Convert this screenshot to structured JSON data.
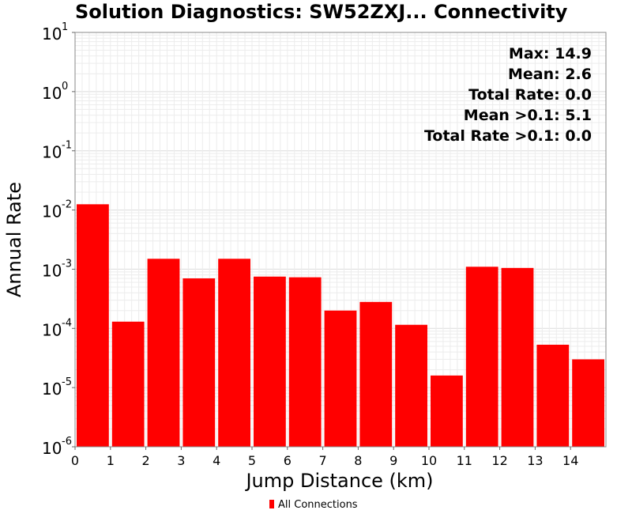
{
  "chart_data": {
    "type": "bar",
    "title": "Solution Diagnostics: SW52ZXJ... Connectivity",
    "xlabel": "Jump Distance (km)",
    "ylabel": "Annual Rate",
    "x_scale": "linear",
    "y_scale": "log",
    "xlim": [
      0,
      15
    ],
    "ylim": [
      1e-06,
      10
    ],
    "x_ticks": [
      "0",
      "1",
      "2",
      "3",
      "4",
      "5",
      "6",
      "7",
      "8",
      "9",
      "10",
      "11",
      "12",
      "13",
      "14"
    ],
    "y_ticks": [
      {
        "base": "10",
        "exp": "-6",
        "value": 1e-06
      },
      {
        "base": "10",
        "exp": "-5",
        "value": 1e-05
      },
      {
        "base": "10",
        "exp": "-4",
        "value": 0.0001
      },
      {
        "base": "10",
        "exp": "-3",
        "value": 0.001
      },
      {
        "base": "10",
        "exp": "-2",
        "value": 0.01
      },
      {
        "base": "10",
        "exp": "-1",
        "value": 0.1
      },
      {
        "base": "10",
        "exp": "0",
        "value": 1
      },
      {
        "base": "10",
        "exp": "1",
        "value": 10
      }
    ],
    "bar_color": "#ff0000",
    "grid": true,
    "bins": [
      {
        "x0": 0,
        "x1": 1,
        "value": 0.0125
      },
      {
        "x0": 1,
        "x1": 2,
        "value": 0.00013
      },
      {
        "x0": 2,
        "x1": 3,
        "value": 0.0015
      },
      {
        "x0": 3,
        "x1": 4,
        "value": 0.0007
      },
      {
        "x0": 4,
        "x1": 5,
        "value": 0.0015
      },
      {
        "x0": 5,
        "x1": 6,
        "value": 0.00075
      },
      {
        "x0": 6,
        "x1": 7,
        "value": 0.00073
      },
      {
        "x0": 7,
        "x1": 8,
        "value": 0.0002
      },
      {
        "x0": 8,
        "x1": 9,
        "value": 0.00028
      },
      {
        "x0": 9,
        "x1": 10,
        "value": 0.000115
      },
      {
        "x0": 10,
        "x1": 11,
        "value": 1.6e-05
      },
      {
        "x0": 11,
        "x1": 12,
        "value": 0.0011
      },
      {
        "x0": 12,
        "x1": 13,
        "value": 0.00105
      },
      {
        "x0": 13,
        "x1": 14,
        "value": 5.3e-05
      },
      {
        "x0": 14,
        "x1": 15,
        "value": 3e-05
      }
    ],
    "annotations": [
      "Max: 14.9",
      "Mean: 2.6",
      "Total Rate: 0.0",
      "Mean >0.1: 5.1",
      "Total Rate >0.1: 0.0"
    ],
    "legend": {
      "placement": "bottom-center",
      "entries": [
        {
          "name": "All Connections",
          "color": "#ff0000"
        }
      ]
    }
  }
}
